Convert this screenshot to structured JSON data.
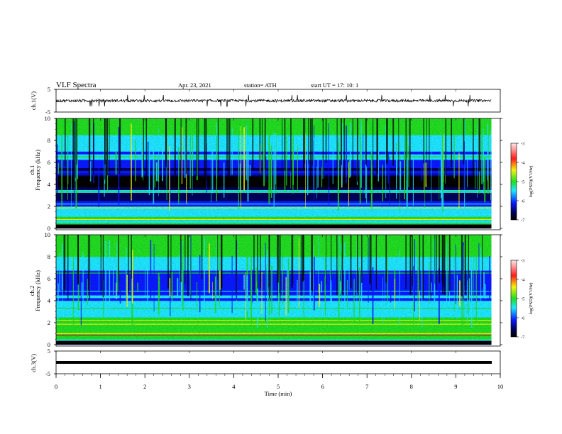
{
  "header": {
    "title": "VLF  Spectra",
    "date": "Apr. 23, 2021",
    "station": "station= ATH",
    "start": "start  UT  =    17: 10: 1"
  },
  "colorbar_label": "log(PSD)(V²/Hz)",
  "colors": {
    "black": "#000000",
    "navy": "#00005a",
    "blue": "#0a1aff",
    "cyan": "#1ee6ff",
    "green": "#22dd22",
    "yellow": "#f2f20e",
    "red": "#ff1c1c",
    "pink": "#ffd2d2"
  },
  "chart_data": [
    {
      "type": "line",
      "name": "ch1-waveform",
      "ylabel": "ch.1(V)",
      "ylim": [
        -5,
        5
      ],
      "yticks": [
        5,
        -5
      ],
      "xlim": [
        0,
        10
      ],
      "baseline": 0,
      "description_values": {
        "typical_amplitude": 0.6,
        "spike_amplitude": 2.5
      }
    },
    {
      "type": "heatmap",
      "name": "ch1-spectrogram",
      "ylabel": "ch.1\nFrequency  (kHz)",
      "ylim": [
        0,
        10
      ],
      "yticks": [
        0,
        2,
        4,
        6,
        8,
        10
      ],
      "xlim": [
        0,
        9.8
      ],
      "zlabel": "log(PSD)(V²/Hz)",
      "zlim": [
        -7,
        -3
      ],
      "zticks": [
        -3,
        -4,
        -5,
        -6,
        -7
      ],
      "profile": [
        [
          0.0,
          -7.0
        ],
        [
          0.2,
          -5.5
        ],
        [
          0.4,
          -4.6
        ],
        [
          0.6,
          -5.3
        ],
        [
          0.8,
          -4.3
        ],
        [
          1.0,
          -5.2
        ],
        [
          1.3,
          -5.3
        ],
        [
          1.6,
          -5.2
        ],
        [
          1.9,
          -4.8
        ],
        [
          2.1,
          -5.4
        ],
        [
          2.4,
          -5.9
        ],
        [
          2.8,
          -6.1
        ],
        [
          3.2,
          -6.3
        ],
        [
          3.4,
          -5.2
        ],
        [
          3.7,
          -6.5
        ],
        [
          4.0,
          -6.9
        ],
        [
          4.5,
          -6.9
        ],
        [
          4.8,
          -6.5
        ],
        [
          5.1,
          -5.7
        ],
        [
          5.4,
          -6.3
        ],
        [
          5.8,
          -5.6
        ],
        [
          6.2,
          -5.6
        ],
        [
          6.5,
          -5.0
        ],
        [
          6.8,
          -5.6
        ],
        [
          7.2,
          -5.1
        ],
        [
          7.6,
          -5.0
        ],
        [
          8.0,
          -4.9
        ],
        [
          8.5,
          -4.8
        ],
        [
          9.0,
          -4.7
        ],
        [
          9.5,
          -4.6
        ],
        [
          10.0,
          -4.5
        ]
      ]
    },
    {
      "type": "heatmap",
      "name": "ch2-spectrogram",
      "ylabel": "ch.2\nFrequency  (kHz)",
      "ylim": [
        0,
        10
      ],
      "yticks": [
        0,
        2,
        4,
        6,
        8,
        10
      ],
      "xlim": [
        0,
        9.8
      ],
      "zlabel": "log(PSD)(V²/Hz)",
      "zlim": [
        -7,
        -3
      ],
      "zticks": [
        -3,
        -4,
        -5,
        -6,
        -7
      ],
      "profile": [
        [
          0.0,
          -6.5
        ],
        [
          0.2,
          -5.3
        ],
        [
          0.5,
          -4.5
        ],
        [
          0.8,
          -4.2
        ],
        [
          1.0,
          -4.5
        ],
        [
          1.3,
          -4.6
        ],
        [
          1.6,
          -4.8
        ],
        [
          1.9,
          -4.4
        ],
        [
          2.2,
          -4.7
        ],
        [
          2.6,
          -4.9
        ],
        [
          3.0,
          -5.0
        ],
        [
          3.3,
          -5.2
        ],
        [
          3.6,
          -5.1
        ],
        [
          4.0,
          -5.5
        ],
        [
          4.4,
          -5.3
        ],
        [
          4.8,
          -6.0
        ],
        [
          5.2,
          -5.8
        ],
        [
          5.6,
          -5.9
        ],
        [
          6.0,
          -5.7
        ],
        [
          6.3,
          -5.4
        ],
        [
          6.7,
          -5.5
        ],
        [
          7.2,
          -5.1
        ],
        [
          7.6,
          -4.9
        ],
        [
          8.0,
          -4.8
        ],
        [
          8.5,
          -4.7
        ],
        [
          9.0,
          -4.6
        ],
        [
          9.5,
          -4.5
        ],
        [
          10.0,
          -4.5
        ]
      ]
    },
    {
      "type": "line",
      "name": "ch3-waveform",
      "ylabel": "ch.3(V)",
      "ylim": [
        -5,
        5
      ],
      "yticks": [
        5,
        -5
      ],
      "xlim": [
        0,
        10
      ],
      "baseline": 0,
      "description_values": {
        "typical_amplitude": 0.3
      }
    }
  ],
  "x_axis": {
    "label": "Time  (min)",
    "xlim": [
      0,
      10
    ],
    "ticks": [
      "0",
      "1",
      "2",
      "3",
      "4",
      "5",
      "6",
      "7",
      "8",
      "9",
      "10"
    ]
  }
}
